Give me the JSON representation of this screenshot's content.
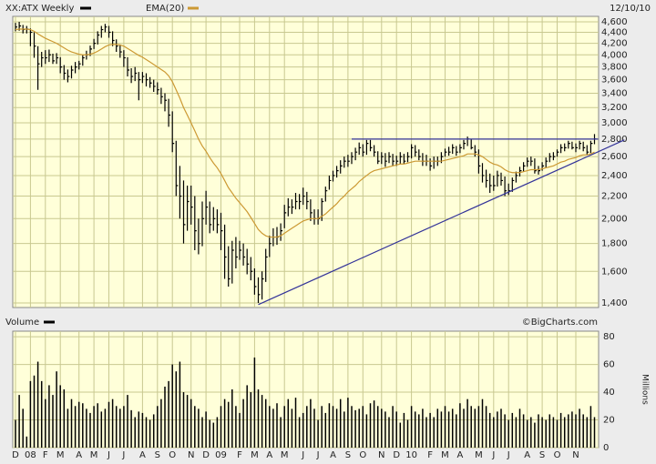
{
  "chart_data": [
    {
      "type": "ohlc",
      "title": "XX:ATX Weekly",
      "date": "12/10/10",
      "log": true,
      "grid": true,
      "ylim": [
        1373,
        4707
      ],
      "yticks": [
        {
          "value": 1400,
          "label": "1,400"
        },
        {
          "value": 1600,
          "label": "1,600"
        },
        {
          "value": 1800,
          "label": "1,800"
        },
        {
          "value": 2000,
          "label": "2,000"
        },
        {
          "value": 2200,
          "label": "2,200"
        },
        {
          "value": 2400,
          "label": "2,400"
        },
        {
          "value": 2600,
          "label": "2,600"
        },
        {
          "value": 2800,
          "label": "2,800"
        },
        {
          "value": 3000,
          "label": "3,000"
        },
        {
          "value": 3200,
          "label": "3,200"
        },
        {
          "value": 3400,
          "label": "3,400"
        },
        {
          "value": 3600,
          "label": "3,600"
        },
        {
          "value": 3800,
          "label": "3,800"
        },
        {
          "value": 4000,
          "label": "4,000"
        },
        {
          "value": 4200,
          "label": "4,200"
        },
        {
          "value": 4400,
          "label": "4,400"
        },
        {
          "value": 4600,
          "label": "4,600"
        }
      ],
      "series": [
        {
          "name": "XX:ATX Weekly",
          "type": "ohlc",
          "color": "#000000",
          "high": [
            4580,
            4600,
            4540,
            4520,
            4470,
            4400,
            4150,
            4050,
            4080,
            4090,
            4020,
            4030,
            3960,
            3830,
            3760,
            3820,
            3880,
            3900,
            4000,
            4070,
            4160,
            4280,
            4420,
            4520,
            4560,
            4520,
            4420,
            4270,
            4180,
            4080,
            3960,
            3780,
            3800,
            3720,
            3720,
            3700,
            3640,
            3600,
            3560,
            3480,
            3400,
            3320,
            3150,
            2780,
            2500,
            2350,
            2300,
            2300,
            2200,
            2000,
            2150,
            2250,
            2150,
            2100,
            2080,
            2050,
            1950,
            1780,
            1820,
            1850,
            1820,
            1800,
            1760,
            1700,
            1620,
            1560,
            1600,
            1760,
            1860,
            1920,
            1930,
            1960,
            2120,
            2180,
            2170,
            2230,
            2220,
            2280,
            2240,
            2170,
            2080,
            2080,
            2180,
            2290,
            2400,
            2450,
            2500,
            2560,
            2600,
            2620,
            2650,
            2700,
            2760,
            2740,
            2790,
            2790,
            2730,
            2660,
            2650,
            2640,
            2650,
            2630,
            2610,
            2650,
            2630,
            2650,
            2740,
            2730,
            2680,
            2640,
            2620,
            2580,
            2600,
            2600,
            2650,
            2690,
            2710,
            2740,
            2720,
            2740,
            2790,
            2830,
            2800,
            2730,
            2680,
            2530,
            2460,
            2420,
            2400,
            2450,
            2430,
            2390,
            2320,
            2380,
            2440,
            2490,
            2540,
            2590,
            2600,
            2580,
            2500,
            2540,
            2590,
            2640,
            2650,
            2680,
            2740,
            2750,
            2780,
            2770,
            2750,
            2780,
            2770,
            2730,
            2780,
            2860
          ],
          "low": [
            4420,
            4430,
            4380,
            4380,
            4150,
            3950,
            3450,
            3800,
            3850,
            3880,
            3850,
            3850,
            3700,
            3600,
            3560,
            3620,
            3700,
            3760,
            3820,
            3920,
            3980,
            4100,
            4180,
            4300,
            4400,
            4300,
            4150,
            4050,
            3950,
            3800,
            3650,
            3550,
            3580,
            3300,
            3550,
            3500,
            3480,
            3420,
            3380,
            3250,
            3150,
            2950,
            2650,
            2200,
            2000,
            1800,
            1900,
            1950,
            1750,
            1720,
            1780,
            1950,
            1880,
            1900,
            1880,
            1750,
            1550,
            1500,
            1520,
            1620,
            1680,
            1640,
            1580,
            1540,
            1450,
            1400,
            1420,
            1530,
            1700,
            1780,
            1790,
            1820,
            1920,
            2020,
            2040,
            2080,
            2080,
            2120,
            2080,
            1980,
            1950,
            1950,
            1980,
            2150,
            2260,
            2340,
            2380,
            2420,
            2480,
            2490,
            2520,
            2560,
            2620,
            2600,
            2620,
            2660,
            2600,
            2520,
            2520,
            2490,
            2530,
            2500,
            2500,
            2520,
            2520,
            2540,
            2580,
            2600,
            2560,
            2500,
            2500,
            2450,
            2470,
            2500,
            2530,
            2600,
            2610,
            2630,
            2610,
            2640,
            2680,
            2720,
            2680,
            2600,
            2420,
            2330,
            2280,
            2230,
            2250,
            2290,
            2300,
            2200,
            2210,
            2240,
            2330,
            2390,
            2440,
            2490,
            2500,
            2420,
            2410,
            2450,
            2480,
            2540,
            2560,
            2600,
            2640,
            2660,
            2690,
            2680,
            2650,
            2680,
            2660,
            2620,
            2640,
            2740
          ],
          "close": [
            4500,
            4520,
            4450,
            4460,
            4400,
            4150,
            3850,
            3950,
            3950,
            4000,
            3900,
            3950,
            3800,
            3700,
            3650,
            3750,
            3800,
            3850,
            3950,
            4000,
            4100,
            4200,
            4350,
            4450,
            4500,
            4400,
            4250,
            4150,
            4050,
            3950,
            3750,
            3650,
            3700,
            3600,
            3650,
            3600,
            3550,
            3500,
            3450,
            3350,
            3300,
            3100,
            2750,
            2300,
            2200,
            1950,
            2150,
            2100,
            1900,
            1800,
            2000,
            2100,
            1950,
            2000,
            1950,
            1900,
            1700,
            1550,
            1750,
            1700,
            1750,
            1700,
            1650,
            1600,
            1500,
            1450,
            1550,
            1700,
            1800,
            1850,
            1850,
            1900,
            2050,
            2100,
            2100,
            2150,
            2150,
            2200,
            2150,
            2050,
            2000,
            2000,
            2150,
            2250,
            2350,
            2400,
            2450,
            2500,
            2550,
            2550,
            2600,
            2650,
            2700,
            2650,
            2750,
            2700,
            2650,
            2550,
            2600,
            2550,
            2600,
            2550,
            2550,
            2600,
            2550,
            2600,
            2700,
            2650,
            2600,
            2550,
            2550,
            2500,
            2550,
            2550,
            2600,
            2650,
            2650,
            2700,
            2650,
            2700,
            2750,
            2800,
            2700,
            2650,
            2500,
            2400,
            2350,
            2300,
            2300,
            2400,
            2350,
            2250,
            2250,
            2350,
            2400,
            2450,
            2500,
            2550,
            2550,
            2450,
            2450,
            2500,
            2550,
            2600,
            2600,
            2650,
            2700,
            2700,
            2750,
            2700,
            2700,
            2750,
            2700,
            2650,
            2750,
            2800
          ]
        },
        {
          "name": "EMA(20)",
          "type": "line",
          "color": "#cc9933",
          "values": [
            4450,
            4460,
            4460,
            4460,
            4450,
            4420,
            4370,
            4330,
            4290,
            4260,
            4230,
            4200,
            4160,
            4120,
            4080,
            4050,
            4030,
            4010,
            4000,
            4000,
            4010,
            4030,
            4060,
            4100,
            4140,
            4170,
            4180,
            4180,
            4170,
            4150,
            4110,
            4070,
            4030,
            3990,
            3960,
            3920,
            3880,
            3840,
            3800,
            3760,
            3720,
            3660,
            3570,
            3450,
            3330,
            3200,
            3100,
            3000,
            2900,
            2800,
            2720,
            2660,
            2590,
            2530,
            2480,
            2420,
            2350,
            2280,
            2230,
            2180,
            2140,
            2100,
            2060,
            2010,
            1960,
            1910,
            1880,
            1860,
            1850,
            1850,
            1850,
            1860,
            1880,
            1900,
            1920,
            1940,
            1960,
            1980,
            1990,
            2000,
            2000,
            2000,
            2020,
            2040,
            2070,
            2100,
            2130,
            2170,
            2200,
            2240,
            2270,
            2300,
            2340,
            2370,
            2400,
            2430,
            2450,
            2460,
            2470,
            2480,
            2490,
            2500,
            2510,
            2520,
            2520,
            2530,
            2540,
            2550,
            2550,
            2550,
            2550,
            2550,
            2550,
            2550,
            2550,
            2560,
            2570,
            2580,
            2590,
            2600,
            2610,
            2630,
            2630,
            2630,
            2620,
            2600,
            2570,
            2540,
            2520,
            2510,
            2490,
            2460,
            2440,
            2430,
            2430,
            2430,
            2440,
            2450,
            2460,
            2460,
            2460,
            2470,
            2480,
            2490,
            2500,
            2520,
            2540,
            2550,
            2570,
            2580,
            2590,
            2610,
            2620,
            2620,
            2630,
            2650
          ]
        }
      ],
      "trendlines": [
        {
          "color": "#333399",
          "from": [
            90,
            2800
          ],
          "to": [
            156,
            2800
          ]
        },
        {
          "color": "#333399",
          "from": [
            65,
            1390
          ],
          "to": [
            163,
            2790
          ]
        }
      ]
    },
    {
      "type": "bar",
      "title": "Volume",
      "credit": "©BigCharts.com",
      "ylabel": "Millions",
      "grid": true,
      "ylim": [
        0,
        84
      ],
      "yticks": [
        0,
        20,
        40,
        60,
        80
      ],
      "categories": [
        "D",
        null,
        null,
        null,
        "08",
        null,
        null,
        null,
        "F",
        null,
        null,
        null,
        "M",
        null,
        null,
        null,
        null,
        "A",
        null,
        null,
        null,
        "M",
        null,
        null,
        null,
        "J",
        null,
        null,
        null,
        "J",
        null,
        null,
        null,
        null,
        "A",
        null,
        null,
        null,
        "S",
        null,
        null,
        null,
        "O",
        null,
        null,
        null,
        null,
        "N",
        null,
        null,
        null,
        "D",
        null,
        null,
        null,
        "09",
        null,
        null,
        null,
        null,
        "F",
        null,
        null,
        null,
        "M",
        null,
        null,
        null,
        "A",
        null,
        null,
        null,
        "M",
        null,
        null,
        null,
        null,
        "J",
        null,
        null,
        null,
        "J",
        null,
        null,
        null,
        "A",
        null,
        null,
        null,
        "S",
        null,
        null,
        null,
        "O",
        null,
        null,
        null,
        null,
        "N",
        null,
        null,
        null,
        "D",
        null,
        null,
        null,
        "10",
        null,
        null,
        null,
        null,
        "F",
        null,
        null,
        null,
        "M",
        null,
        null,
        null,
        "A",
        null,
        null,
        null,
        null,
        "M",
        null,
        null,
        null,
        "J",
        null,
        null,
        null,
        "J",
        null,
        null,
        null,
        null,
        "A",
        null,
        null,
        null,
        "S",
        null,
        null,
        null,
        "O",
        null,
        null,
        null,
        null,
        "N",
        null,
        null,
        null,
        null,
        null
      ],
      "series": [
        {
          "name": "Volume",
          "color": "#000000",
          "values": [
            20,
            38,
            28,
            8,
            48,
            52,
            62,
            48,
            35,
            45,
            38,
            55,
            45,
            42,
            28,
            35,
            30,
            33,
            32,
            28,
            25,
            30,
            32,
            26,
            28,
            33,
            35,
            30,
            28,
            30,
            38,
            27,
            22,
            26,
            25,
            22,
            20,
            24,
            30,
            35,
            44,
            48,
            60,
            55,
            62,
            40,
            38,
            35,
            30,
            28,
            22,
            26,
            20,
            18,
            22,
            30,
            35,
            33,
            42,
            30,
            25,
            35,
            45,
            40,
            65,
            42,
            38,
            35,
            30,
            28,
            32,
            22,
            30,
            35,
            28,
            36,
            22,
            25,
            30,
            35,
            28,
            20,
            30,
            25,
            32,
            30,
            28,
            35,
            26,
            36,
            30,
            27,
            28,
            30,
            24,
            32,
            34,
            30,
            28,
            26,
            22,
            30,
            26,
            18,
            25,
            20,
            30,
            26,
            24,
            28,
            22,
            25,
            22,
            28,
            26,
            30,
            26,
            28,
            24,
            32,
            28,
            35,
            30,
            28,
            30,
            35,
            30,
            25,
            22,
            26,
            28,
            24,
            20,
            25,
            22,
            28,
            24,
            20,
            22,
            18,
            24,
            22,
            20,
            24,
            22,
            20,
            25,
            22,
            24,
            26,
            24,
            28,
            24,
            22,
            30,
            22
          ]
        }
      ]
    }
  ]
}
